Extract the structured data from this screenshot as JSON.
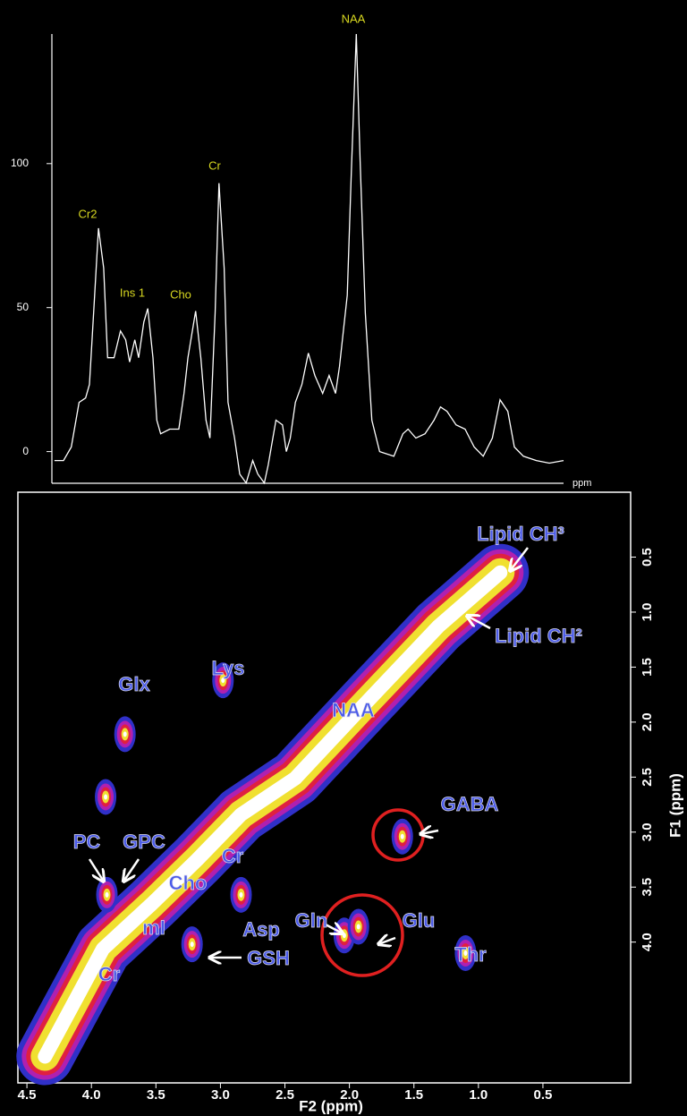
{
  "chart_data": [
    {
      "type": "line",
      "color": "#ffffff",
      "xlabel": "ppm",
      "x": [
        4.29,
        4.22,
        4.16,
        4.1,
        4.05,
        4.02,
        3.98,
        3.95,
        3.91,
        3.88,
        3.83,
        3.78,
        3.74,
        3.71,
        3.67,
        3.64,
        3.6,
        3.57,
        3.53,
        3.5,
        3.47,
        3.4,
        3.33,
        3.29,
        3.26,
        3.2,
        3.16,
        3.12,
        3.09,
        3.05,
        3.02,
        2.98,
        2.95,
        2.9,
        2.86,
        2.81,
        2.76,
        2.72,
        2.67,
        2.64,
        2.58,
        2.53,
        2.5,
        2.47,
        2.43,
        2.38,
        2.33,
        2.28,
        2.22,
        2.17,
        2.12,
        2.09,
        2.03,
        2.0,
        1.96,
        1.93,
        1.89,
        1.84,
        1.78,
        1.67,
        1.6,
        1.56,
        1.5,
        1.43,
        1.36,
        1.31,
        1.26,
        1.19,
        1.12,
        1.05,
        0.98,
        0.91,
        0.85,
        0.79,
        0.74,
        0.67,
        0.57,
        0.47,
        0.36
      ],
      "values": [
        -3.1,
        -3.1,
        1.6,
        17.1,
        18.6,
        23.3,
        54.3,
        77.6,
        63.7,
        32.6,
        32.6,
        41.9,
        38.8,
        31.1,
        38.8,
        32.6,
        45.0,
        49.7,
        32.6,
        10.9,
        6.2,
        7.8,
        7.8,
        20.2,
        32.6,
        48.8,
        32.6,
        10.9,
        4.7,
        48.1,
        93.2,
        63.7,
        17.1,
        4.7,
        -7.8,
        -10.9,
        -3.1,
        -7.8,
        -10.9,
        -4.7,
        10.9,
        9.3,
        0,
        4.7,
        17.1,
        23.3,
        34.2,
        26.4,
        20.2,
        26.4,
        20.2,
        29.5,
        54.3,
        94.7,
        145,
        100.9,
        48.1,
        10.9,
        0,
        -1.6,
        6.2,
        7.8,
        4.7,
        6.2,
        10.9,
        15.5,
        14.0,
        9.3,
        7.8,
        1.6,
        -1.6,
        4.7,
        18.0,
        14.0,
        1.6,
        -1.6,
        -3.1,
        -4.0,
        -3.1
      ],
      "xlim": [
        4.31,
        0.36
      ],
      "ylim": [
        -11,
        145
      ],
      "yticks": [
        0,
        50,
        100
      ],
      "annotations": [
        "Cr2",
        "Ins 1",
        "Cho",
        "Cr",
        "NAA"
      ]
    },
    {
      "type": "contour",
      "xlabel": "F2 (ppm)",
      "ylabel": "F1 (ppm)",
      "xlim": [
        4.57,
        -0.18
      ],
      "ylim": [
        -0.09,
        5.28
      ],
      "xticks": [
        4.5,
        {
          "value": 4.0,
          "label": "4.0"
        },
        3.5,
        {
          "value": 3.0,
          "label": "3.0"
        },
        2.5,
        {
          "value": 2.0,
          "label": "2.0"
        },
        1.5,
        {
          "value": 1.0,
          "label": "1.0"
        },
        0.5
      ],
      "yticks": [
        0.5,
        {
          "value": 1.0,
          "label": "1.0"
        },
        1.5,
        {
          "value": 2.0,
          "label": "2.0"
        },
        2.5,
        {
          "value": 3.0,
          "label": "3.0"
        },
        3.5,
        {
          "value": 4.0,
          "label": "4.0"
        }
      ],
      "diagonal": {
        "x": [
          4.36,
          3.91,
          3.53,
          3.18,
          2.84,
          2.42,
          1.9,
          1.31,
          0.83
        ],
        "y": [
          5.04,
          4.06,
          3.65,
          3.25,
          2.84,
          2.51,
          1.86,
          1.13,
          0.64
        ]
      },
      "cross_peaks": {
        "x": [
          3.74,
          3.89,
          3.88,
          1.59,
          2.04,
          1.93,
          2.84,
          3.22,
          1.1,
          2.98
        ],
        "y": [
          2.11,
          2.68,
          3.57,
          3.04,
          3.94,
          3.86,
          3.57,
          4.02,
          4.1,
          1.62
        ]
      },
      "annotations": [
        "Lipid CH³",
        "Lipid CH²",
        "NAA",
        "Glx",
        "Lys",
        "GABA",
        "PC",
        "GPC",
        "Cho",
        "Cr",
        "mI",
        "Asp",
        "Gln",
        "Glu",
        "Thr",
        "Cr",
        "GSH"
      ]
    }
  ]
}
